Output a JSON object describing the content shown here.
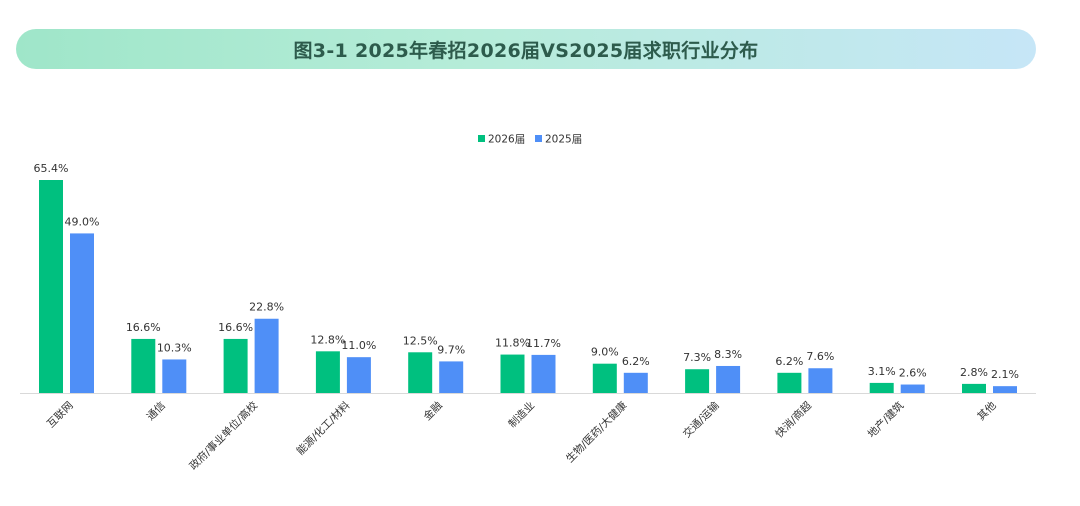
{
  "title": "图3-1 2025年春招2026届VS2025届求职行业分布",
  "colors": {
    "series_2026": "#00c07f",
    "series_2025": "#4f8ff7"
  },
  "chart_data": {
    "type": "bar",
    "categories": [
      "互联网",
      "通信",
      "政府/事业单位/高校",
      "能源/化工/材料",
      "金融",
      "制造业",
      "生物/医药/大健康",
      "交通/运输",
      "快消/商超",
      "地产/建筑",
      "其他"
    ],
    "series": [
      {
        "name": "2026届",
        "values": [
          65.4,
          16.6,
          16.6,
          12.8,
          12.5,
          11.8,
          9.0,
          7.3,
          6.2,
          3.1,
          2.8
        ],
        "labels": [
          "65.4%",
          "16.6%",
          "16.6%",
          "12.8%",
          "12.5%",
          "11.8%",
          "9.0%",
          "7.3%",
          "6.2%",
          "3.1%",
          "2.8%"
        ]
      },
      {
        "name": "2025届",
        "values": [
          49.0,
          10.3,
          22.8,
          11.0,
          9.7,
          11.7,
          6.2,
          8.3,
          7.6,
          2.6,
          2.1
        ],
        "labels": [
          "49.0%",
          "10.3%",
          "22.8%",
          "11.0%",
          "9.7%",
          "11.7%",
          "6.2%",
          "8.3%",
          "7.6%",
          "2.6%",
          "2.1%"
        ]
      }
    ],
    "ylim": [
      0,
      65.4
    ],
    "legend": "top-center",
    "grid": false
  }
}
